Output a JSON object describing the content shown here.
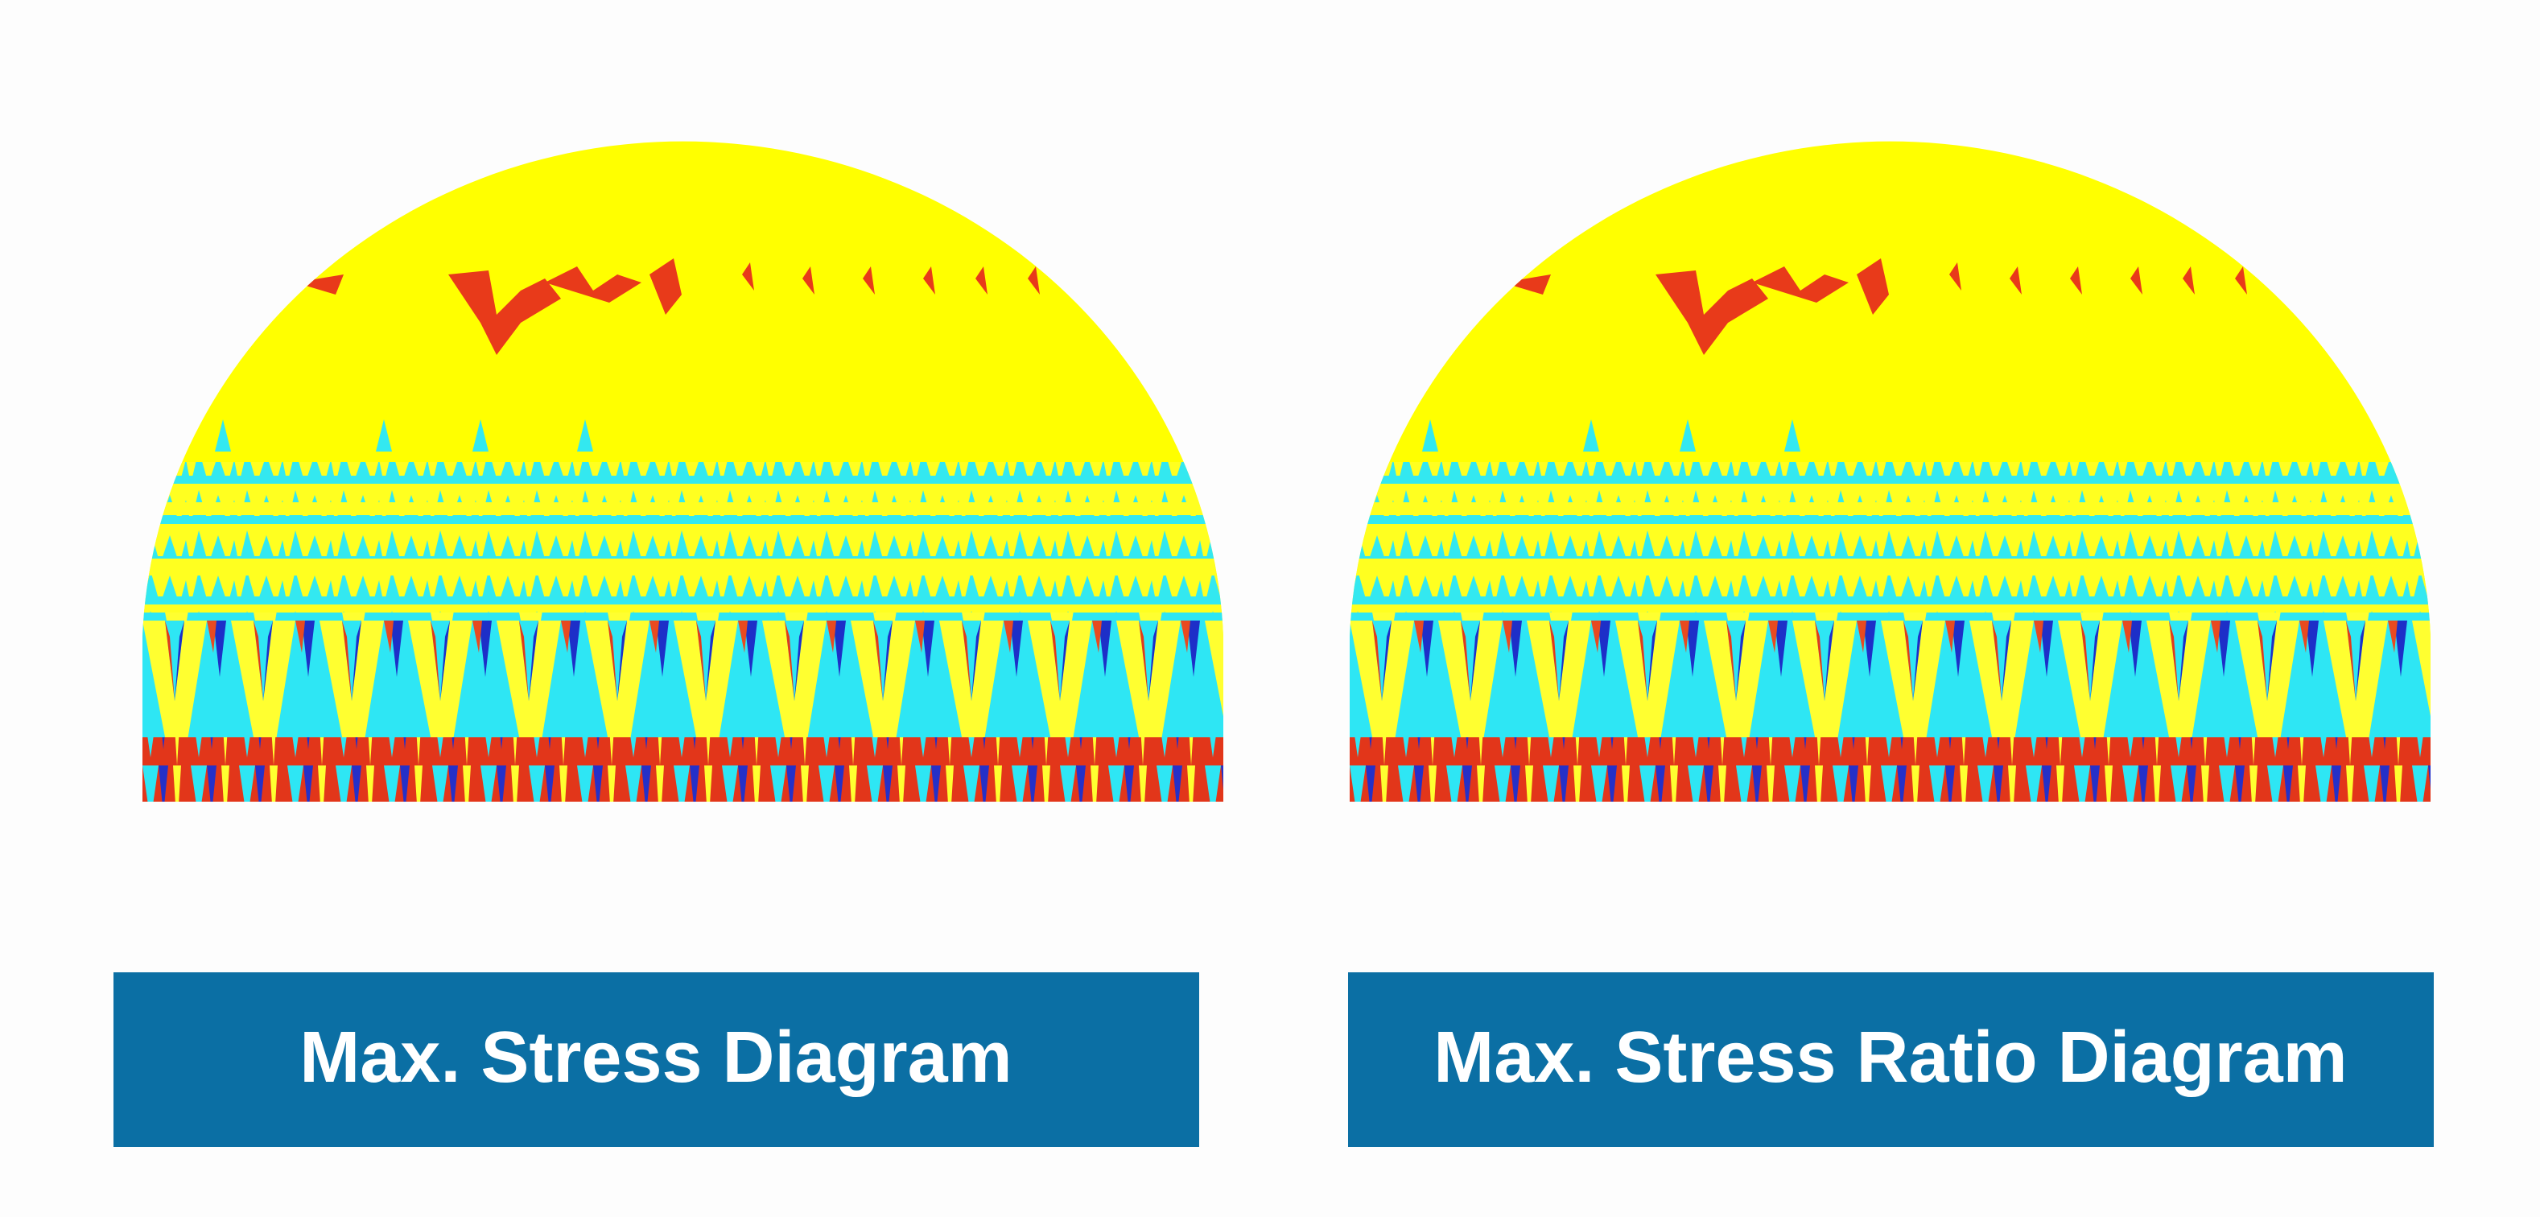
{
  "panels": [
    {
      "label": "Max. Stress Diagram"
    },
    {
      "label": "Max. Stress Ratio Diagram"
    }
  ]
}
